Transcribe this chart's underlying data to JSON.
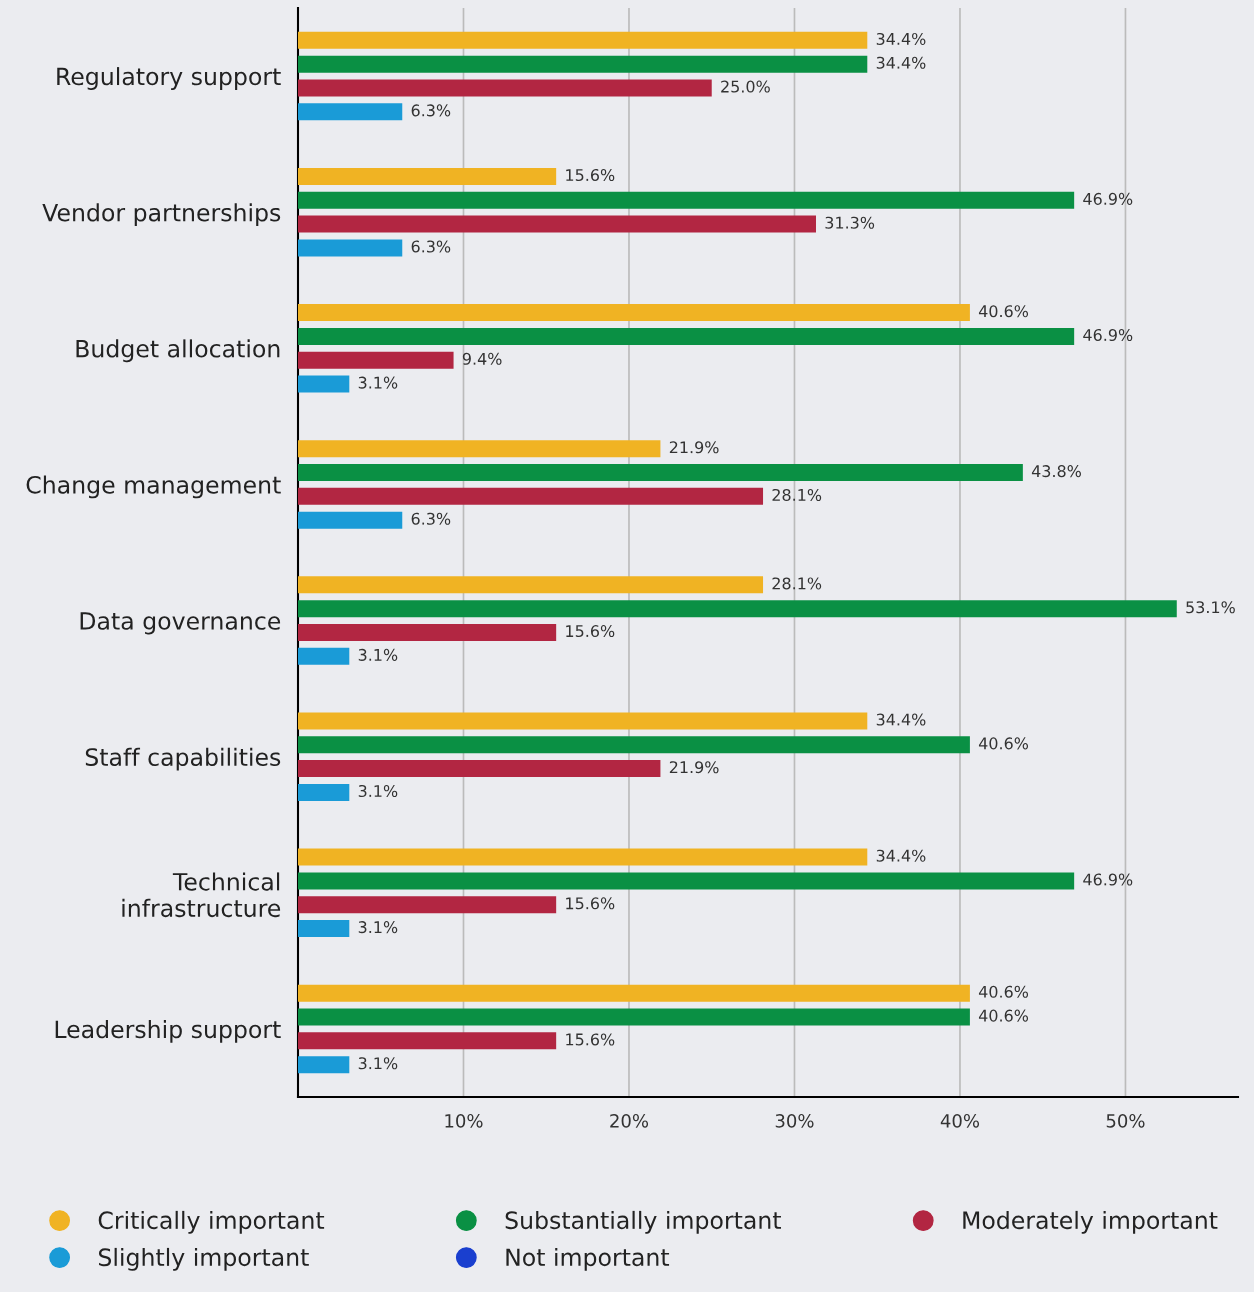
{
  "chart_data": {
    "type": "bar",
    "orientation": "horizontal",
    "categories": [
      "Regulatory support",
      "Vendor partnerships",
      "Budget allocation",
      "Change management",
      "Data governance",
      "Staff capabilities",
      "Technical infrastructure",
      "Leadership support"
    ],
    "series": [
      {
        "name": "Critically important",
        "color": "#f0b323",
        "values": [
          34.4,
          15.6,
          40.6,
          21.9,
          28.1,
          34.4,
          34.4,
          40.6
        ],
        "value_labels": [
          "34.4%",
          "15.6%",
          "40.6%",
          "21.9%",
          "28.1%",
          "34.4%",
          "34.4%",
          "40.6%"
        ]
      },
      {
        "name": "Substantially important",
        "color": "#0a9044",
        "values": [
          34.4,
          46.9,
          46.9,
          43.8,
          53.1,
          40.6,
          46.9,
          40.6
        ],
        "value_labels": [
          "34.4%",
          "46.9%",
          "46.9%",
          "43.8%",
          "53.1%",
          "40.6%",
          "46.9%",
          "40.6%"
        ]
      },
      {
        "name": "Moderately important",
        "color": "#b22642",
        "values": [
          25.0,
          31.3,
          9.4,
          28.1,
          15.6,
          21.9,
          15.6,
          15.6
        ],
        "value_labels": [
          "25.0%",
          "31.3%",
          "9.4%",
          "28.1%",
          "15.6%",
          "21.9%",
          "15.6%",
          "15.6%"
        ]
      },
      {
        "name": "Slightly important",
        "color": "#1a9bd7",
        "values": [
          6.3,
          6.3,
          3.1,
          6.3,
          3.1,
          3.1,
          3.1,
          3.1
        ],
        "value_labels": [
          "6.3%",
          "6.3%",
          "3.1%",
          "6.3%",
          "3.1%",
          "3.1%",
          "3.1%",
          "3.1%"
        ]
      },
      {
        "name": "Not important",
        "color": "#1a3fcf",
        "values": [
          null,
          null,
          null,
          null,
          null,
          null,
          null,
          null
        ]
      }
    ],
    "xlim": [
      0,
      56.8
    ],
    "xticks": [
      {
        "value": 10,
        "label": "10%"
      },
      {
        "value": 20,
        "label": "20%"
      },
      {
        "value": 30,
        "label": "30%"
      },
      {
        "value": 40,
        "label": "40%"
      },
      {
        "value": 50,
        "label": "50%"
      }
    ],
    "grid": "x",
    "legend": "bottom"
  }
}
